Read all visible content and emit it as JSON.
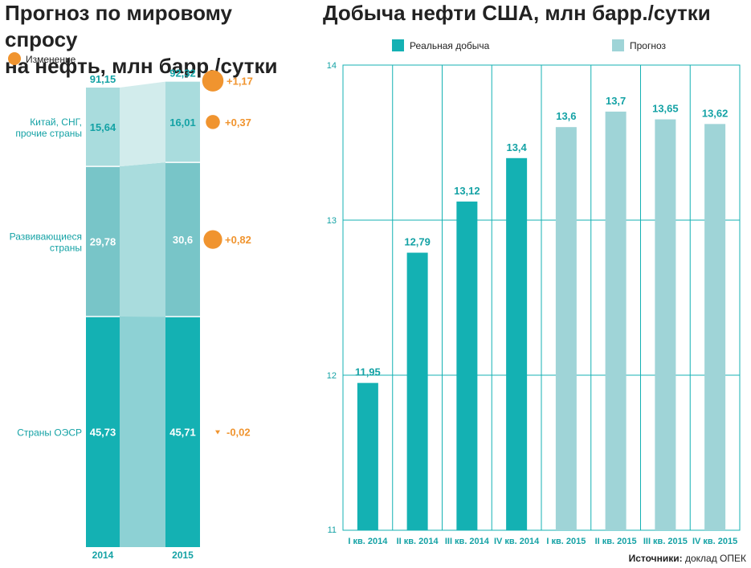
{
  "left": {
    "title_line1": "Прогноз по мировому спросу",
    "title_line2": "на нефть, млн барр./сутки",
    "legend_label": "Изменение"
  },
  "right": {
    "title": "Добыча нефти США, млн барр./сутки"
  },
  "source": {
    "label": "Источники:",
    "text": "доклад ОПЕК"
  },
  "colors": {
    "teal_dark": "#14b1b3",
    "teal_mid": "#78c5c8",
    "teal_light": "#a9dcdd",
    "forecast": "#9fd4d7",
    "orange": "#f0942f",
    "gridline": "#14b1b3"
  },
  "chart_data": [
    {
      "type": "bar",
      "stacked": true,
      "title": "Прогноз по мировому спросу на нефть, млн барр./сутки",
      "categories": [
        "2014",
        "2015"
      ],
      "totals": [
        "91,15",
        "92,32"
      ],
      "total_change": "+1,17",
      "total_change_value": 1.17,
      "series": [
        {
          "name": "Страны ОЭСР",
          "values": [
            45.73,
            45.71
          ],
          "labels": [
            "45,73",
            "45,71"
          ],
          "change": "-0,02",
          "change_value": -0.02,
          "color": "#14b1b3"
        },
        {
          "name": "Развивающиеся страны",
          "name_lines": [
            "Развивающиеся",
            "страны"
          ],
          "values": [
            29.78,
            30.6
          ],
          "labels": [
            "29,78",
            "30,6"
          ],
          "change": "+0,82",
          "change_value": 0.82,
          "color": "#78c5c8"
        },
        {
          "name": "Китай, СНГ, прочие страны",
          "name_lines": [
            "Китай, СНГ,",
            "прочие страны"
          ],
          "values": [
            15.64,
            16.01
          ],
          "labels": [
            "15,64",
            "16,01"
          ],
          "change": "+0,37",
          "change_value": 0.37,
          "color": "#a9dcdd"
        }
      ],
      "legend": "Изменение",
      "legend_placement": "top-left"
    },
    {
      "type": "bar",
      "title": "Добыча нефти США, млн барр./сутки",
      "categories": [
        "I кв. 2014",
        "II кв. 2014",
        "III кв. 2014",
        "IV кв. 2014",
        "I кв. 2015",
        "II кв. 2015",
        "III кв. 2015",
        "IV кв. 2015"
      ],
      "values": [
        11.95,
        12.79,
        13.12,
        13.4,
        13.6,
        13.7,
        13.65,
        13.62
      ],
      "labels": [
        "11,95",
        "12,79",
        "13,12",
        "13,4",
        "13,6",
        "13,7",
        "13,65",
        "13,62"
      ],
      "kinds": [
        "actual",
        "actual",
        "actual",
        "actual",
        "forecast",
        "forecast",
        "forecast",
        "forecast"
      ],
      "legend": [
        {
          "name": "Реальная добыча",
          "kind": "actual"
        },
        {
          "name": "Прогноз",
          "kind": "forecast"
        }
      ],
      "legend_placement": "top",
      "ylim": [
        11,
        14
      ],
      "yticks": [
        11,
        12,
        13,
        14
      ],
      "grid": true
    }
  ]
}
